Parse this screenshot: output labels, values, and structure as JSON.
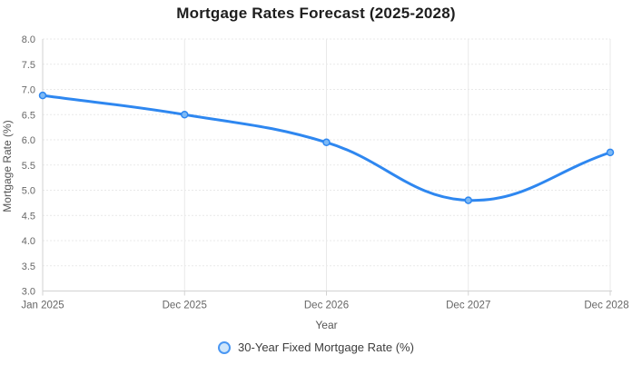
{
  "title": "Mortgage Rates Forecast (2025-2028)",
  "chart_data": {
    "type": "line",
    "categories": [
      "Jan 2025",
      "Dec 2025",
      "Dec 2026",
      "Dec 2027",
      "Dec 2028"
    ],
    "series": [
      {
        "name": "30-Year Fixed Mortgage Rate (%)",
        "values": [
          6.88,
          6.5,
          5.95,
          4.8,
          5.75
        ]
      }
    ],
    "title": "Mortgage Rates Forecast (2025-2028)",
    "xlabel": "Year",
    "ylabel": "Mortgage Rate (%)",
    "ylim": [
      3.0,
      8.0
    ],
    "ytick_step": 0.5,
    "grid": true,
    "legend_position": "bottom",
    "colors": {
      "line": "#2e87f0",
      "point_fill": "#7db9f5",
      "point_stroke": "#2e87f0",
      "grid": "#e9e9e9",
      "axis": "#d2d2d2",
      "tick_label": "#666666",
      "axis_title": "#555555",
      "title": "#1e1e1e",
      "legend_text": "#3d3d3d"
    }
  },
  "legend": {
    "label": "30-Year Fixed Mortgage Rate (%)"
  },
  "axes": {
    "xlabel": "Year",
    "ylabel": "Mortgage Rate (%)"
  }
}
